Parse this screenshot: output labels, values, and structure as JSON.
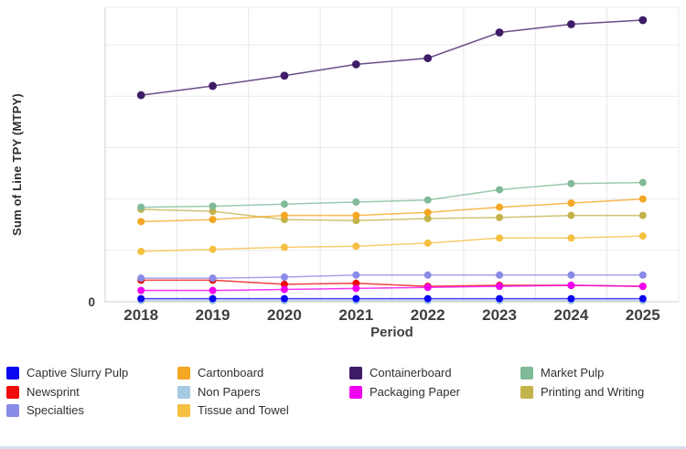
{
  "chart_data": {
    "type": "line",
    "title": "",
    "ylabel": "Sum of Line TPY (MTPY)",
    "xlabel": "Period",
    "x": [
      2018,
      2019,
      2020,
      2021,
      2022,
      2023,
      2024,
      2025
    ],
    "y_axis": {
      "visible_tick_labels": [
        "0"
      ],
      "zero_label": "0",
      "ylim": [
        0,
        287
      ],
      "gridline_values": [
        50,
        100,
        150,
        200,
        250
      ],
      "gridlines_labeled": false,
      "grid": "on"
    },
    "legend_position": "bottom",
    "series": [
      {
        "name": "Non Papers",
        "color": "#a5cbe2",
        "values": [
          1,
          1,
          1,
          1,
          1,
          1,
          1,
          1
        ]
      },
      {
        "name": "Captive Slurry Pulp",
        "color": "#0a06ef",
        "values": [
          3,
          3,
          3,
          3,
          3,
          3,
          3,
          3
        ]
      },
      {
        "name": "Newsprint",
        "color": "#ed0b0b",
        "values": [
          21,
          21,
          17,
          18,
          15,
          16,
          16,
          15
        ]
      },
      {
        "name": "Packaging Paper",
        "color": "#ee00ee",
        "values": [
          11,
          11,
          12,
          13,
          14,
          15,
          16,
          15
        ]
      },
      {
        "name": "Specialties",
        "color": "#8a8ae8",
        "values": [
          23,
          23,
          24,
          26,
          26,
          26,
          26,
          26
        ]
      },
      {
        "name": "Tissue and Towel",
        "color": "#f5bf42",
        "values": [
          49,
          51,
          53,
          54,
          57,
          62,
          62,
          64
        ]
      },
      {
        "name": "Printing and Writing",
        "color": "#c2b34a",
        "values": [
          90,
          88,
          80,
          79,
          81,
          82,
          84,
          84
        ]
      },
      {
        "name": "Cartonboard",
        "color": "#f5a623",
        "values": [
          78,
          80,
          84,
          84,
          87,
          92,
          96,
          100
        ]
      },
      {
        "name": "Market Pulp",
        "color": "#80ba96",
        "values": [
          92,
          93,
          95,
          97,
          99,
          109,
          115,
          116
        ]
      },
      {
        "name": "Containerboard",
        "color": "#3f1d66",
        "values": [
          201,
          210,
          220,
          231,
          237,
          262,
          270,
          274
        ]
      }
    ]
  },
  "legend": {
    "columns": [
      {
        "x": 7,
        "items": [
          {
            "label": "Captive Slurry Pulp",
            "color": "#0a06ef"
          },
          {
            "label": "Newsprint",
            "color": "#ed0b0b"
          },
          {
            "label": "Specialties",
            "color": "#8a8ae8"
          }
        ]
      },
      {
        "x": 194,
        "items": [
          {
            "label": "Cartonboard",
            "color": "#f5a623"
          },
          {
            "label": "Non Papers",
            "color": "#a5cbe2"
          },
          {
            "label": "Tissue and Towel",
            "color": "#f5bf42"
          }
        ]
      },
      {
        "x": 382,
        "items": [
          {
            "label": "Containerboard",
            "color": "#3f1d66"
          },
          {
            "label": "Packaging Paper",
            "color": "#ee00ee"
          }
        ]
      },
      {
        "x": 569,
        "items": [
          {
            "label": "Market Pulp",
            "color": "#80ba96"
          },
          {
            "label": "Printing and Writing",
            "color": "#c2b34a"
          }
        ]
      }
    ]
  },
  "colors": {
    "grid_horizontal": "#e9e9e9",
    "grid_vertical": "#ece4ea",
    "axis": "#cfcfcf",
    "plot_border": "#e9e9e9"
  }
}
